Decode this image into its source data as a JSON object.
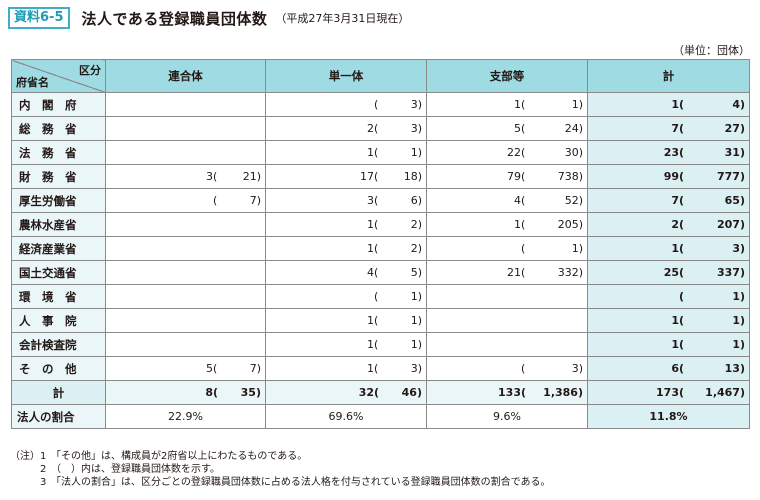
{
  "header": {
    "badge": "資料6-5",
    "title": "法人である登録職員団体数",
    "subtitle": "（平成27年3月31日現在）",
    "unit": "（単位：団体）"
  },
  "table": {
    "corner_top": "区分",
    "corner_bottom": "府省名",
    "columns": [
      "連合体",
      "単一体",
      "支部等",
      "計"
    ],
    "rows": [
      {
        "name": "内　閣　府",
        "cells": [
          [
            "",
            ""
          ],
          [
            "",
            "3"
          ],
          [
            "1",
            "1"
          ],
          [
            "1",
            "4"
          ]
        ]
      },
      {
        "name": "総　務　省",
        "cells": [
          [
            "",
            ""
          ],
          [
            "2",
            "3"
          ],
          [
            "5",
            "24"
          ],
          [
            "7",
            "27"
          ]
        ]
      },
      {
        "name": "法　務　省",
        "cells": [
          [
            "",
            ""
          ],
          [
            "1",
            "1"
          ],
          [
            "22",
            "30"
          ],
          [
            "23",
            "31"
          ]
        ]
      },
      {
        "name": "財　務　省",
        "cells": [
          [
            "3",
            "21"
          ],
          [
            "17",
            "18"
          ],
          [
            "79",
            "738"
          ],
          [
            "99",
            "777"
          ]
        ]
      },
      {
        "name": "厚生労働省",
        "cells": [
          [
            "",
            "7"
          ],
          [
            "3",
            "6"
          ],
          [
            "4",
            "52"
          ],
          [
            "7",
            "65"
          ]
        ]
      },
      {
        "name": "農林水産省",
        "cells": [
          [
            "",
            ""
          ],
          [
            "1",
            "2"
          ],
          [
            "1",
            "205"
          ],
          [
            "2",
            "207"
          ]
        ]
      },
      {
        "name": "経済産業省",
        "cells": [
          [
            "",
            ""
          ],
          [
            "1",
            "2"
          ],
          [
            "",
            "1"
          ],
          [
            "1",
            "3"
          ]
        ]
      },
      {
        "name": "国土交通省",
        "cells": [
          [
            "",
            ""
          ],
          [
            "4",
            "5"
          ],
          [
            "21",
            "332"
          ],
          [
            "25",
            "337"
          ]
        ]
      },
      {
        "name": "環　境　省",
        "cells": [
          [
            "",
            ""
          ],
          [
            "",
            "1"
          ],
          [
            "",
            ""
          ],
          [
            "",
            "1"
          ]
        ]
      },
      {
        "name": "人　事　院",
        "cells": [
          [
            "",
            ""
          ],
          [
            "1",
            "1"
          ],
          [
            "",
            ""
          ],
          [
            "1",
            "1"
          ]
        ]
      },
      {
        "name": "会計検査院",
        "cells": [
          [
            "",
            ""
          ],
          [
            "1",
            "1"
          ],
          [
            "",
            ""
          ],
          [
            "1",
            "1"
          ]
        ]
      },
      {
        "name": "そ　の　他",
        "cells": [
          [
            "5",
            "7"
          ],
          [
            "1",
            "3"
          ],
          [
            "",
            "3"
          ],
          [
            "6",
            "13"
          ]
        ]
      }
    ],
    "total": {
      "name": "計",
      "cells": [
        [
          "8",
          "35"
        ],
        [
          "32",
          "46"
        ],
        [
          "133",
          "1,386"
        ],
        [
          "173",
          "1,467"
        ]
      ]
    },
    "ratio": {
      "name": "法人の割合",
      "cells": [
        "22.9%",
        "69.6%",
        "9.6%",
        "11.8%"
      ]
    }
  },
  "notes": {
    "label": "（注）",
    "items": [
      {
        "num": "1",
        "text": "「その他」は、構成員が2府省以上にわたるものである。"
      },
      {
        "num": "2",
        "text": "（　）内は、登録職員団体数を示す。"
      },
      {
        "num": "3",
        "text": "「法人の割合」は、区分ごとの登録職員団体数に占める法人格を付与されている登録職員団体数の割合である。"
      }
    ]
  }
}
